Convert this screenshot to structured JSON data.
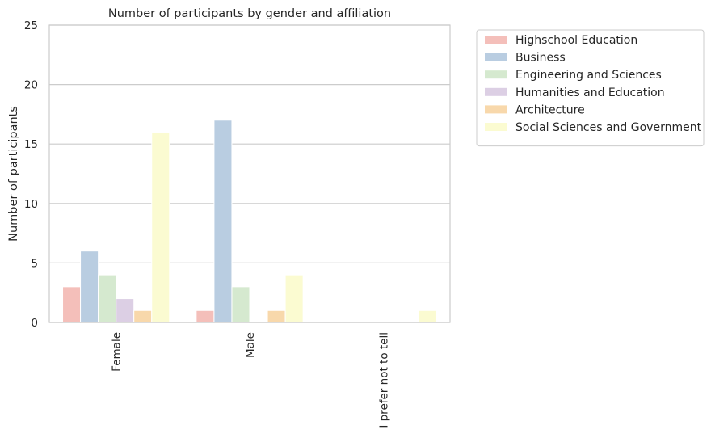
{
  "chart_data": {
    "type": "bar",
    "title": "Number of participants by gender and affiliation",
    "xlabel": "",
    "ylabel": "Number of participants",
    "ylim": [
      0,
      25
    ],
    "yticks": [
      0,
      5,
      10,
      15,
      20,
      25
    ],
    "grid": true,
    "legend_position": "outside-right",
    "categories": [
      "Female",
      "Male",
      "I prefer not to tell"
    ],
    "series": [
      {
        "name": "Highschool Education",
        "color": "#f4bfba",
        "values": [
          3,
          1,
          0
        ]
      },
      {
        "name": "Business",
        "color": "#b9cde1",
        "values": [
          6,
          17,
          0
        ]
      },
      {
        "name": "Engineering and Sciences",
        "color": "#d5e9cf",
        "values": [
          4,
          3,
          0
        ]
      },
      {
        "name": "Humanities and Education",
        "color": "#dccfe4",
        "values": [
          2,
          0,
          0
        ]
      },
      {
        "name": "Architecture",
        "color": "#f8d8ab",
        "values": [
          1,
          1,
          0
        ]
      },
      {
        "name": "Social Sciences and Government",
        "color": "#fbfbd1",
        "values": [
          16,
          4,
          1
        ]
      }
    ]
  }
}
